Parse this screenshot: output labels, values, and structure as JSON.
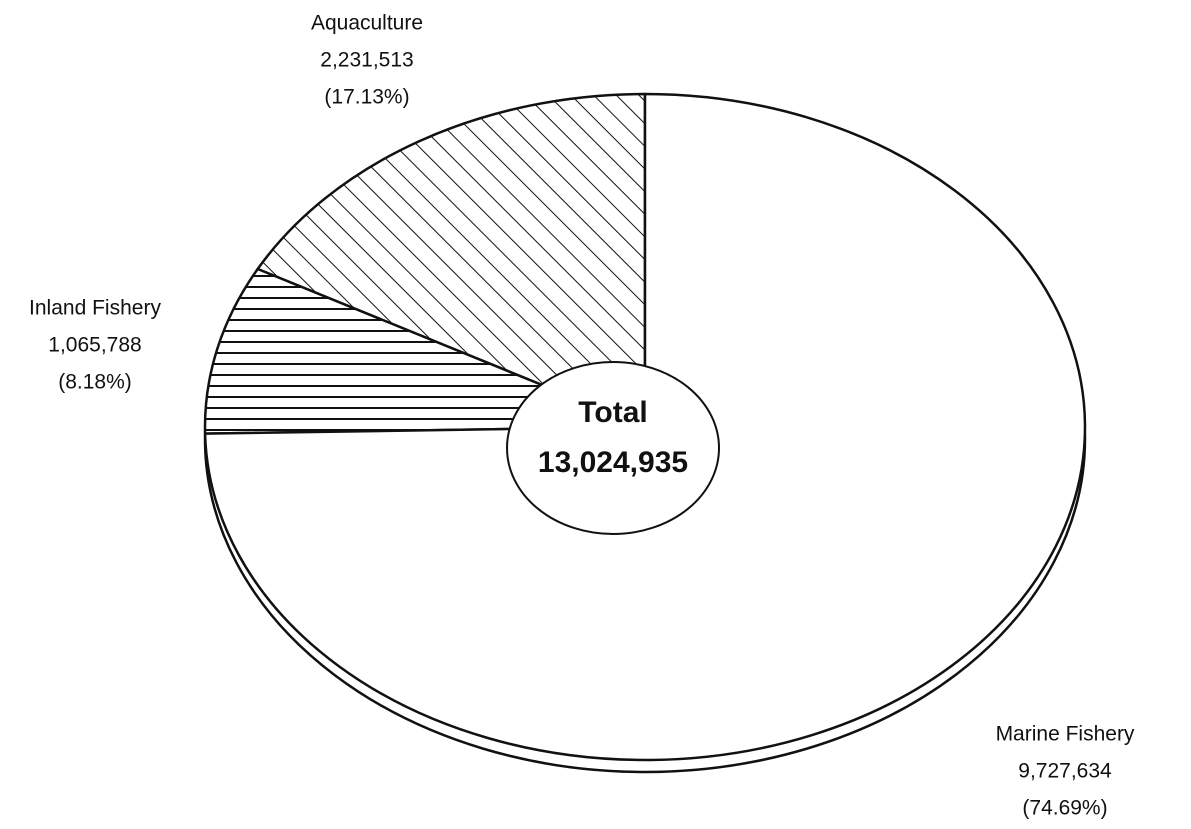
{
  "chart_data": {
    "type": "pie",
    "categories": [
      "Aquaculture",
      "Inland Fishery",
      "Marine Fishery"
    ],
    "values": [
      2231513,
      1065788,
      9727634
    ],
    "value_labels": [
      "2,231,513",
      "1,065,788",
      "9,727,634"
    ],
    "percent_labels": [
      "(17.13%)",
      "(8.18%)",
      "(74.69%)"
    ],
    "hatch": [
      "diagonal",
      "horizontal",
      "none"
    ],
    "center_label": "Total",
    "total_label": "13,024,935"
  }
}
